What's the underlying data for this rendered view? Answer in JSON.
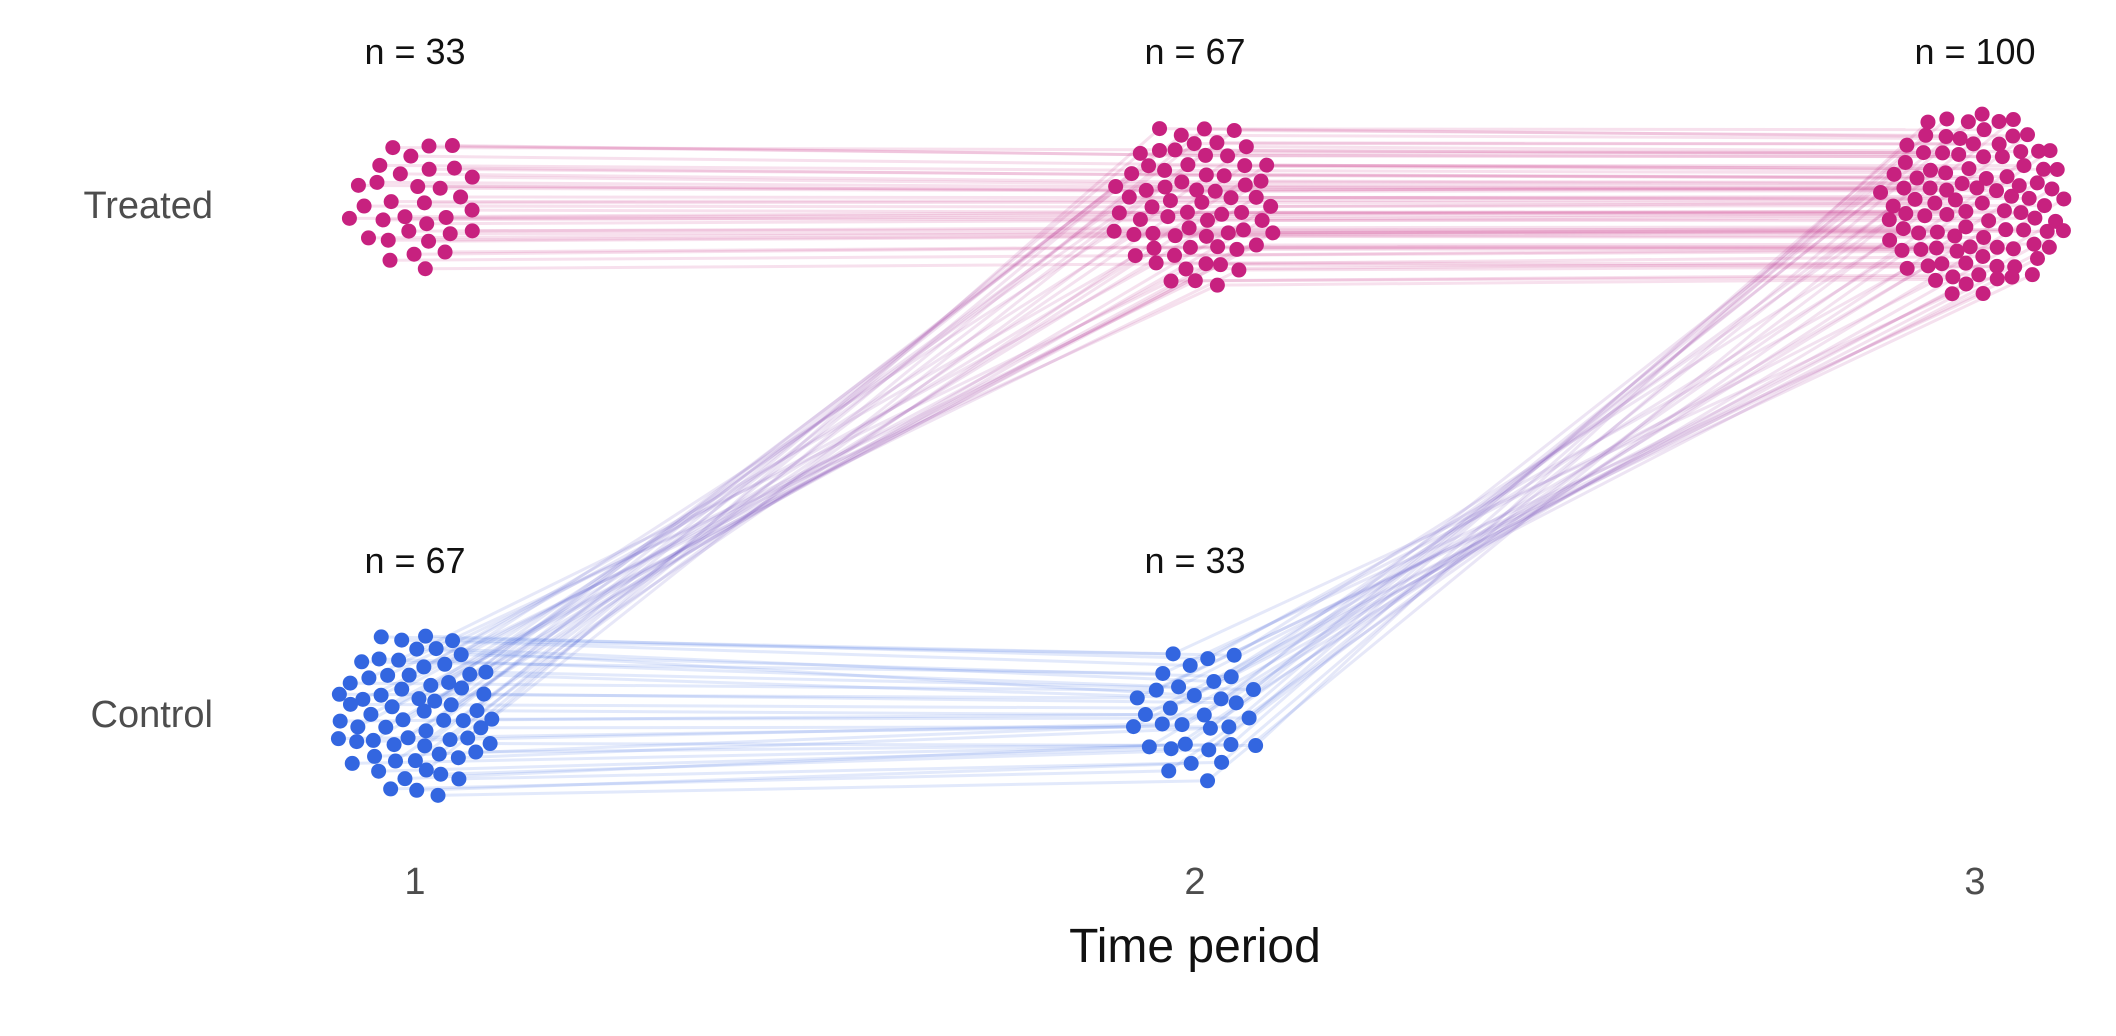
{
  "chart_data": {
    "type": "scatter",
    "subtype": "unit-flow / alluvial scatter",
    "title": "",
    "xlabel": "Time period",
    "ylabel": "",
    "x_ticks": [
      "1",
      "2",
      "3"
    ],
    "groups": [
      "Treated",
      "Control"
    ],
    "colors": {
      "Treated": "#c7217f",
      "Control": "#3366e0"
    },
    "grid": false,
    "legend": "none",
    "counts": [
      {
        "period": 1,
        "group": "Treated",
        "n": 33,
        "label": "n = 33"
      },
      {
        "period": 2,
        "group": "Treated",
        "n": 67,
        "label": "n = 67"
      },
      {
        "period": 3,
        "group": "Treated",
        "n": 100,
        "label": "n = 100"
      },
      {
        "period": 1,
        "group": "Control",
        "n": 67,
        "label": "n = 67"
      },
      {
        "period": 2,
        "group": "Control",
        "n": 33,
        "label": "n = 33"
      },
      {
        "period": 3,
        "group": "Control",
        "n": 0,
        "label": ""
      }
    ],
    "flows": [
      {
        "from_period": 1,
        "from_group": "Treated",
        "to_period": 2,
        "to_group": "Treated",
        "n": 33
      },
      {
        "from_period": 1,
        "from_group": "Control",
        "to_period": 2,
        "to_group": "Treated",
        "n": 34
      },
      {
        "from_period": 1,
        "from_group": "Control",
        "to_period": 2,
        "to_group": "Control",
        "n": 33
      },
      {
        "from_period": 2,
        "from_group": "Treated",
        "to_period": 3,
        "to_group": "Treated",
        "n": 67
      },
      {
        "from_period": 2,
        "from_group": "Control",
        "to_period": 3,
        "to_group": "Treated",
        "n": 33
      }
    ]
  }
}
